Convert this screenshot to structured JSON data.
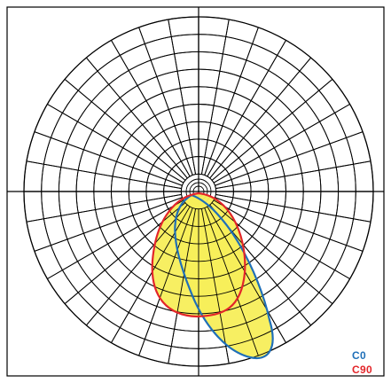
{
  "chart_data": {
    "type": "polar",
    "title": "",
    "grid": true,
    "angular_grid_step_deg": 10,
    "radial_rings": 10,
    "legend_position": "bottom-right",
    "series": [
      {
        "name": "C0",
        "color": "#1f6fb8"
      },
      {
        "name": "C90",
        "color": "#e3262a"
      }
    ],
    "fill_color": "#f7ee5a"
  }
}
